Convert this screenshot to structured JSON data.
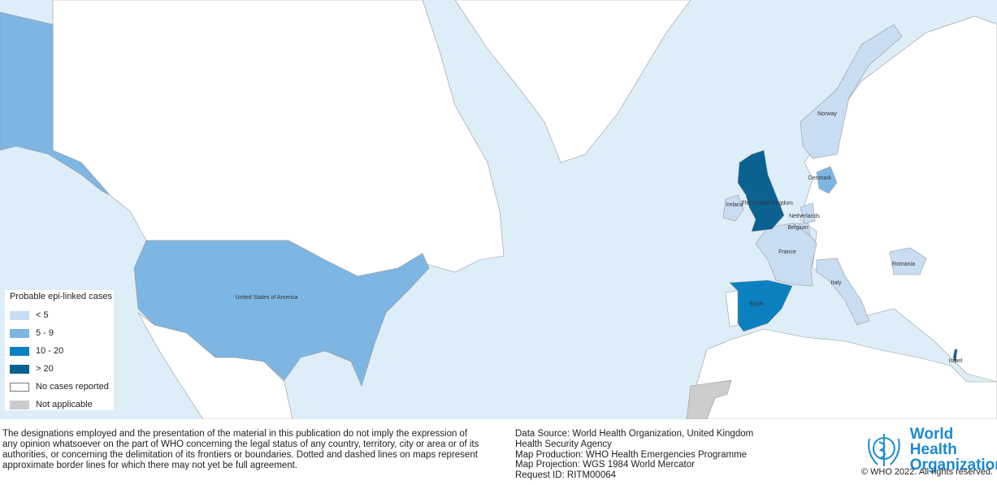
{
  "legend": {
    "title": "Probable epi-linked cases",
    "items": [
      {
        "label": "< 5",
        "color": "#c8ddf2"
      },
      {
        "label": "5 - 9",
        "color": "#7db6e3"
      },
      {
        "label": "10 - 20",
        "color": "#0a80c0"
      },
      {
        "label": "> 20",
        "color": "#0b6290"
      },
      {
        "label": "No cases reported",
        "color": "#ffffff"
      },
      {
        "label": "Not applicable",
        "color": "#cccccc"
      }
    ]
  },
  "countries": {
    "usa": "United States of America",
    "uk": "The United Kingdom",
    "ireland": "Ireland",
    "spain": "Spain",
    "france": "France",
    "italy": "Italy",
    "netherlands": "Netherlands",
    "belgium": "Belgium",
    "denmark": "Denmark",
    "norway": "Norway",
    "romania": "Romania",
    "israel": "Israel"
  },
  "disclaimer": "The designations employed and the presentation of the material in this publication do not imply the expression of any opinion whatsoever on the part of WHO concerning the legal status of any country, territory, city or area or of its authorities, or concerning the delimitation of its frontiers or boundaries. Dotted and dashed lines on maps represent approximate border lines for which there may not yet be full agreement.",
  "source": {
    "data_source": "Data Source: World Health Organization, United Kingdom Health Security Agency",
    "production": "Map Production: WHO Health Emergencies Programme",
    "projection": "Map Projection: WGS 1984 World Mercator",
    "request_id": "Request ID: RITM00064"
  },
  "logo": {
    "name_line1": "World Health",
    "name_line2": "Organization"
  },
  "copyright": "© WHO 2022. All rights reserved."
}
